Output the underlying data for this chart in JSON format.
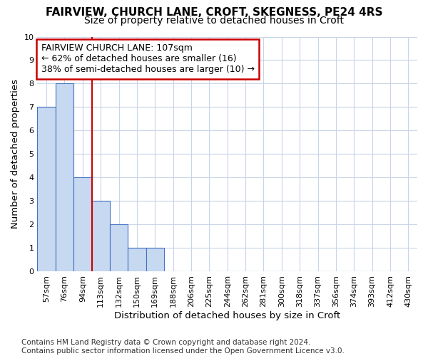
{
  "title1": "FAIRVIEW, CHURCH LANE, CROFT, SKEGNESS, PE24 4RS",
  "title2": "Size of property relative to detached houses in Croft",
  "xlabel": "Distribution of detached houses by size in Croft",
  "ylabel": "Number of detached properties",
  "footnote": "Contains HM Land Registry data © Crown copyright and database right 2024.\nContains public sector information licensed under the Open Government Licence v3.0.",
  "bin_labels": [
    "57sqm",
    "76sqm",
    "94sqm",
    "113sqm",
    "132sqm",
    "150sqm",
    "169sqm",
    "188sqm",
    "206sqm",
    "225sqm",
    "244sqm",
    "262sqm",
    "281sqm",
    "300sqm",
    "318sqm",
    "337sqm",
    "356sqm",
    "374sqm",
    "393sqm",
    "412sqm",
    "430sqm"
  ],
  "bar_values": [
    7,
    8,
    4,
    3,
    2,
    1,
    1,
    0,
    0,
    0,
    0,
    0,
    0,
    0,
    0,
    0,
    0,
    0,
    0,
    0,
    0
  ],
  "bar_color": "#c6d9f0",
  "bar_edge_color": "#4472c4",
  "grid_color": "#c8d4e8",
  "vline_x": 2.5,
  "vline_color": "#cc0000",
  "annotation_text": "FAIRVIEW CHURCH LANE: 107sqm\n← 62% of detached houses are smaller (16)\n38% of semi-detached houses are larger (10) →",
  "annotation_box_color": "#cc0000",
  "ylim": [
    0,
    10
  ],
  "yticks": [
    0,
    1,
    2,
    3,
    4,
    5,
    6,
    7,
    8,
    9,
    10
  ],
  "title1_fontsize": 11,
  "title2_fontsize": 10,
  "axis_fontsize": 9.5,
  "tick_fontsize": 8,
  "annot_fontsize": 9,
  "footnote_fontsize": 7.5
}
